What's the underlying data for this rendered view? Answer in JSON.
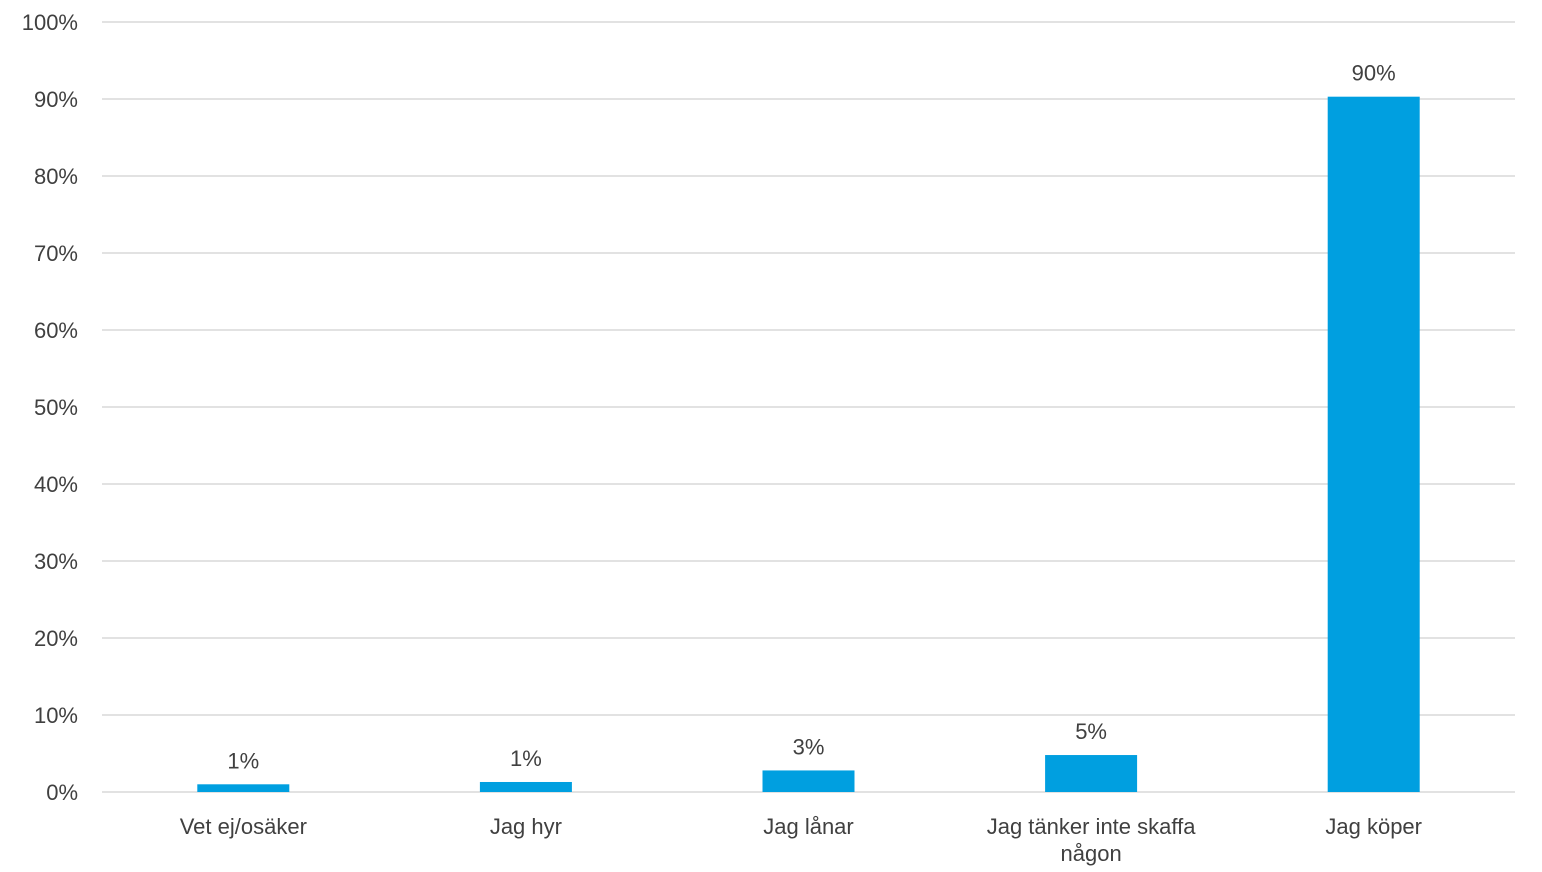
{
  "chart_data": {
    "type": "bar",
    "title": "",
    "xlabel": "",
    "ylabel": "",
    "categories": [
      "Vet ej/osäker",
      "Jag hyr",
      "Jag lånar",
      "Jag tänker inte skaffa någon",
      "Jag köper"
    ],
    "category_lines": [
      [
        "Vet ej/osäker"
      ],
      [
        "Jag hyr"
      ],
      [
        "Jag lånar"
      ],
      [
        "Jag tänker inte skaffa",
        "någon"
      ],
      [
        "Jag köper"
      ]
    ],
    "values": [
      1,
      1.3,
      2.8,
      4.8,
      90.3
    ],
    "value_labels": [
      "1%",
      "1%",
      "3%",
      "5%",
      "90%"
    ],
    "ylim": [
      0,
      100
    ],
    "yticks": [
      0,
      10,
      20,
      30,
      40,
      50,
      60,
      70,
      80,
      90,
      100
    ],
    "ytick_labels": [
      "0%",
      "10%",
      "20%",
      "30%",
      "40%",
      "50%",
      "60%",
      "70%",
      "80%",
      "90%",
      "100%"
    ],
    "grid": true,
    "legend": "none",
    "colors": {
      "bar": "#009fe0",
      "grid": "#d9d9d9",
      "text": "#404040"
    }
  }
}
